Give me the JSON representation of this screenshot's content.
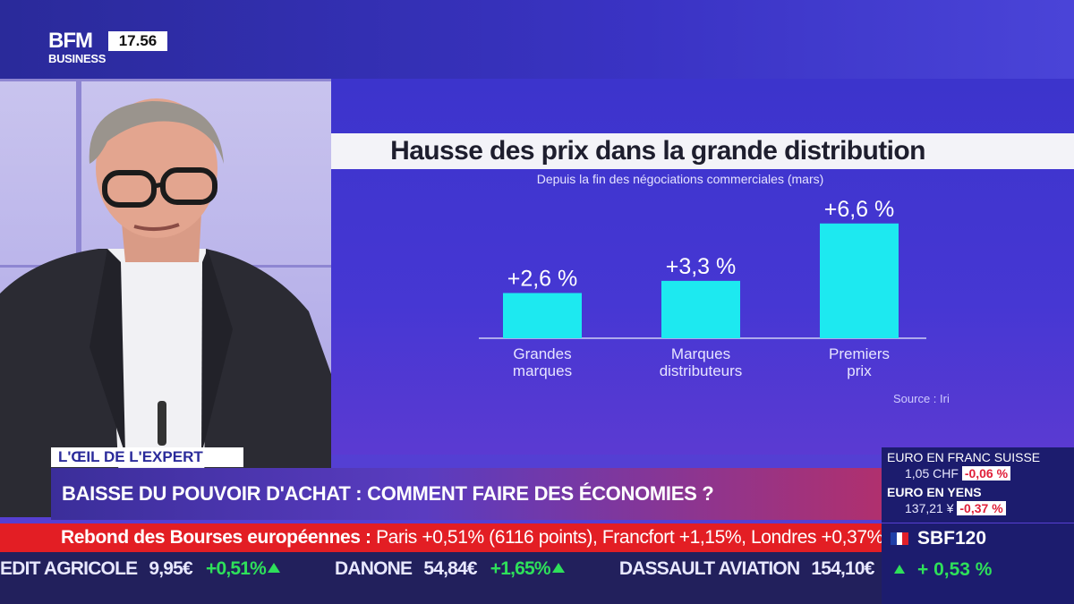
{
  "channel": {
    "logo_line1": "BFM",
    "logo_line2": "BUSINESS",
    "time": "17.56"
  },
  "chart_data": {
    "type": "bar",
    "title": "Hausse des prix dans la grande distribution",
    "subtitle": "Depuis la fin des négociations commerciales (mars)",
    "categories": [
      [
        "Grandes",
        "marques"
      ],
      [
        "Marques",
        "distributeurs"
      ],
      [
        "Premiers",
        "prix"
      ]
    ],
    "values": [
      2.6,
      3.3,
      6.6
    ],
    "value_labels": [
      "+2,6 %",
      "+3,3 %",
      "+6,6 %"
    ],
    "unit": "%",
    "ylim": [
      0,
      7
    ],
    "bar_color": "#1de9f0",
    "source": "Source : Iri",
    "grid": false
  },
  "segment": {
    "tag": "L'ŒIL DE L'EXPERT",
    "headline": "BAISSE DU POUVOIR D'ACHAT : COMMENT FAIRE DES ÉCONOMIES ?"
  },
  "fx": [
    {
      "name": "EURO EN FRANC SUISSE",
      "value": "1,05 CHF",
      "change": "-0,06 %"
    },
    {
      "name": "EURO EN YENS",
      "value": "137,21 ¥",
      "change": "-0,37 %"
    }
  ],
  "news_ticker": {
    "bold": "Rebond des Bourses européennes :",
    "text": "Paris +0,51% (6116 points), Francfort +1,15%, Londres +0,37%."
  },
  "stock_ticker": [
    {
      "name": "EDIT AGRICOLE",
      "price": "9,95€",
      "change": "+0,51%"
    },
    {
      "name": "DANONE",
      "price": "54,84€",
      "change": "+1,65%"
    },
    {
      "name": "DASSAULT AVIATION",
      "price": "154,10€",
      "change": ""
    }
  ],
  "index": {
    "name": "SBF120",
    "change": "+ 0,53 %",
    "flag_colors": [
      "#1f3fa8",
      "#ffffff",
      "#e0202a"
    ],
    "up_color": "#2ee05a"
  }
}
